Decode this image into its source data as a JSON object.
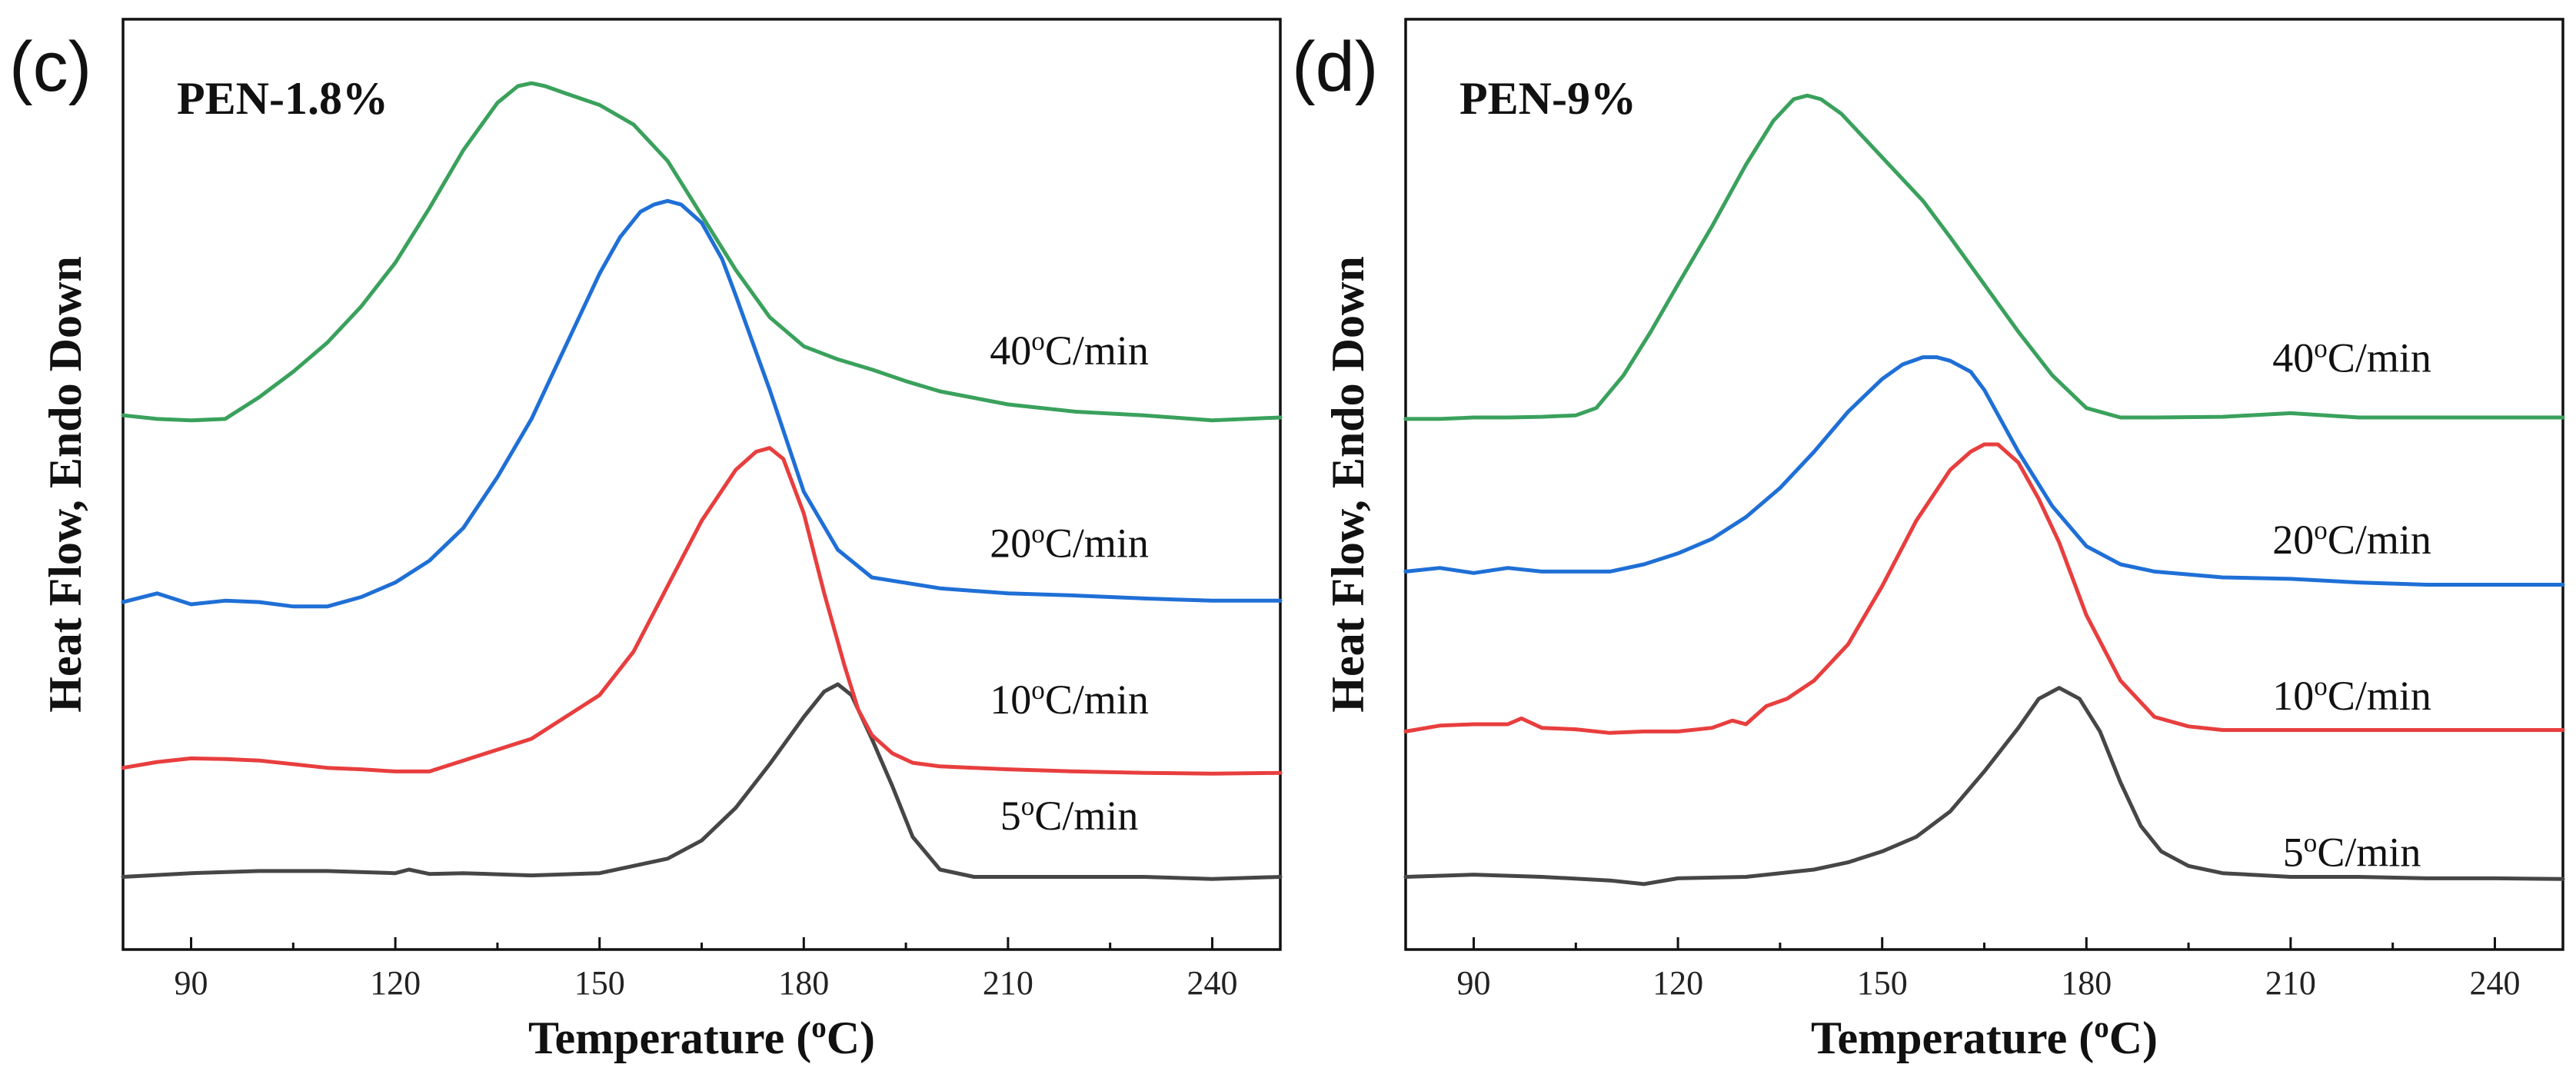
{
  "chart_data": [
    {
      "type": "line",
      "panel": "(c)",
      "title": "PEN-1.8%",
      "xlabel": "Temperature (°C)",
      "xlabel_parts": {
        "pre": "Temperature (",
        "sup": "o",
        "post": "C)"
      },
      "ylabel": "Heat Flow, Endo Down",
      "xlim": [
        80,
        250
      ],
      "ylim": [
        -1.0,
        11.8
      ],
      "xticks": [
        90,
        120,
        150,
        180,
        210,
        240
      ],
      "yticks": [],
      "grid": false,
      "legend": "inline labels at right",
      "series": [
        {
          "name": "5°C/min",
          "label_parts": {
            "pre": "5",
            "sup": "o",
            "post": "C/min"
          },
          "label_at": [
            219,
            0.65
          ],
          "color": "#464646",
          "x": [
            80,
            90,
            100,
            110,
            120,
            122,
            125,
            130,
            140,
            150,
            160,
            165,
            170,
            175,
            180,
            183,
            185,
            187,
            190,
            193,
            196,
            200,
            205,
            210,
            220,
            230,
            240,
            250
          ],
          "y": [
            0.0,
            0.05,
            0.08,
            0.08,
            0.05,
            0.1,
            0.04,
            0.05,
            0.02,
            0.05,
            0.25,
            0.5,
            0.95,
            1.55,
            2.2,
            2.55,
            2.65,
            2.5,
            1.9,
            1.25,
            0.55,
            0.1,
            0.0,
            0.0,
            0.0,
            0.0,
            -0.03,
            0.0
          ]
        },
        {
          "name": "10°C/min",
          "label_parts": {
            "pre": "10",
            "sup": "o",
            "post": "C/min"
          },
          "label_at": [
            219,
            2.25
          ],
          "color": "#e83e3e",
          "x": [
            80,
            85,
            90,
            95,
            100,
            110,
            115,
            120,
            125,
            130,
            140,
            150,
            155,
            160,
            165,
            170,
            173,
            175,
            177,
            180,
            183,
            186,
            188,
            190,
            193,
            196,
            200,
            205,
            210,
            220,
            230,
            240,
            250
          ],
          "y": [
            1.5,
            1.58,
            1.63,
            1.62,
            1.6,
            1.5,
            1.48,
            1.45,
            1.45,
            1.6,
            1.9,
            2.5,
            3.1,
            4.0,
            4.9,
            5.6,
            5.85,
            5.9,
            5.75,
            5.0,
            3.9,
            2.9,
            2.3,
            1.95,
            1.7,
            1.57,
            1.52,
            1.5,
            1.48,
            1.45,
            1.43,
            1.42,
            1.43
          ]
        },
        {
          "name": "20°C/min",
          "label_parts": {
            "pre": "20",
            "sup": "o",
            "post": "C/min"
          },
          "label_at": [
            219,
            4.4
          ],
          "color": "#1f6fd6",
          "x": [
            80,
            85,
            90,
            95,
            100,
            105,
            110,
            115,
            120,
            125,
            130,
            135,
            140,
            145,
            150,
            153,
            156,
            158,
            160,
            162,
            165,
            168,
            170,
            175,
            180,
            185,
            190,
            200,
            210,
            220,
            230,
            240,
            250
          ],
          "y": [
            3.78,
            3.9,
            3.75,
            3.8,
            3.78,
            3.72,
            3.72,
            3.85,
            4.05,
            4.35,
            4.8,
            5.5,
            6.3,
            7.3,
            8.3,
            8.8,
            9.15,
            9.25,
            9.3,
            9.25,
            9.0,
            8.5,
            8.0,
            6.7,
            5.3,
            4.5,
            4.12,
            3.97,
            3.9,
            3.87,
            3.83,
            3.8,
            3.8
          ]
        },
        {
          "name": "40°C/min",
          "label_parts": {
            "pre": "40",
            "sup": "o",
            "post": "C/min"
          },
          "label_at": [
            219,
            7.05
          ],
          "color": "#3aa15c",
          "x": [
            80,
            85,
            90,
            95,
            100,
            105,
            110,
            115,
            120,
            125,
            130,
            135,
            138,
            140,
            142,
            145,
            150,
            155,
            160,
            165,
            170,
            175,
            180,
            185,
            190,
            195,
            200,
            210,
            220,
            230,
            240,
            250
          ],
          "y": [
            6.35,
            6.3,
            6.28,
            6.3,
            6.6,
            6.95,
            7.35,
            7.85,
            8.45,
            9.2,
            10.0,
            10.65,
            10.88,
            10.92,
            10.88,
            10.78,
            10.62,
            10.35,
            9.85,
            9.1,
            8.35,
            7.7,
            7.3,
            7.12,
            6.98,
            6.82,
            6.68,
            6.5,
            6.4,
            6.35,
            6.28,
            6.32
          ]
        }
      ]
    },
    {
      "type": "line",
      "panel": "(d)",
      "title": "PEN-9%",
      "xlabel": "Temperature (°C)",
      "xlabel_parts": {
        "pre": "Temperature (",
        "sup": "o",
        "post": "C)"
      },
      "ylabel": "Heat Flow, Endo Down",
      "xlim": [
        80,
        250
      ],
      "ylim": [
        -1.0,
        11.8
      ],
      "xticks": [
        90,
        120,
        150,
        180,
        210,
        240
      ],
      "yticks": [],
      "grid": false,
      "legend": "inline labels at right",
      "series": [
        {
          "name": "5°C/min",
          "label_parts": {
            "pre": "5",
            "sup": "o",
            "post": "C/min"
          },
          "label_at": [
            219,
            0.15
          ],
          "color": "#464646",
          "x": [
            80,
            90,
            100,
            110,
            115,
            120,
            130,
            140,
            145,
            150,
            155,
            160,
            165,
            170,
            173,
            176,
            179,
            182,
            185,
            188,
            191,
            195,
            200,
            210,
            220,
            230,
            240,
            250
          ],
          "y": [
            0.0,
            0.03,
            0.0,
            -0.05,
            -0.1,
            -0.02,
            0.0,
            0.1,
            0.2,
            0.35,
            0.55,
            0.9,
            1.45,
            2.05,
            2.45,
            2.6,
            2.45,
            2.0,
            1.3,
            0.7,
            0.35,
            0.15,
            0.05,
            0.0,
            0.0,
            -0.02,
            -0.02,
            -0.03
          ]
        },
        {
          "name": "10°C/min",
          "label_parts": {
            "pre": "10",
            "sup": "o",
            "post": "C/min"
          },
          "label_at": [
            219,
            2.3
          ],
          "color": "#e83e3e",
          "x": [
            80,
            85,
            90,
            95,
            97,
            100,
            105,
            110,
            115,
            120,
            125,
            128,
            130,
            133,
            136,
            140,
            145,
            150,
            155,
            160,
            163,
            165,
            167,
            170,
            173,
            176,
            180,
            185,
            190,
            195,
            200,
            210,
            220,
            230,
            240,
            250
          ],
          "y": [
            2.0,
            2.08,
            2.1,
            2.1,
            2.18,
            2.05,
            2.03,
            1.98,
            2.0,
            2.0,
            2.05,
            2.15,
            2.1,
            2.35,
            2.45,
            2.7,
            3.2,
            4.0,
            4.9,
            5.6,
            5.85,
            5.95,
            5.95,
            5.7,
            5.2,
            4.6,
            3.6,
            2.7,
            2.2,
            2.07,
            2.02,
            2.02,
            2.02,
            2.02,
            2.02,
            2.02
          ]
        },
        {
          "name": "20°C/min",
          "label_parts": {
            "pre": "20",
            "sup": "o",
            "post": "C/min"
          },
          "label_at": [
            219,
            4.45
          ],
          "color": "#1f6fd6",
          "x": [
            80,
            85,
            90,
            95,
            100,
            110,
            115,
            120,
            125,
            130,
            135,
            140,
            145,
            150,
            153,
            156,
            158,
            160,
            163,
            165,
            170,
            175,
            180,
            185,
            190,
            200,
            210,
            220,
            230,
            240,
            250
          ],
          "y": [
            4.2,
            4.25,
            4.18,
            4.25,
            4.2,
            4.2,
            4.3,
            4.45,
            4.65,
            4.95,
            5.35,
            5.85,
            6.4,
            6.85,
            7.05,
            7.15,
            7.15,
            7.1,
            6.95,
            6.7,
            5.85,
            5.1,
            4.55,
            4.3,
            4.2,
            4.12,
            4.1,
            4.05,
            4.02,
            4.02,
            4.02
          ]
        },
        {
          "name": "40°C/min",
          "label_parts": {
            "pre": "40",
            "sup": "o",
            "post": "C/min"
          },
          "label_at": [
            219,
            6.95
          ],
          "color": "#3aa15c",
          "x": [
            80,
            85,
            90,
            95,
            100,
            105,
            108,
            112,
            116,
            120,
            125,
            130,
            134,
            137,
            139,
            141,
            144,
            148,
            152,
            156,
            160,
            165,
            170,
            175,
            180,
            185,
            190,
            200,
            210,
            220,
            230,
            240,
            250
          ],
          "y": [
            6.3,
            6.3,
            6.32,
            6.32,
            6.33,
            6.35,
            6.45,
            6.9,
            7.5,
            8.15,
            8.95,
            9.8,
            10.4,
            10.7,
            10.75,
            10.7,
            10.5,
            10.1,
            9.7,
            9.3,
            8.8,
            8.15,
            7.5,
            6.9,
            6.45,
            6.32,
            6.32,
            6.33,
            6.38,
            6.32,
            6.32,
            6.32,
            6.32
          ]
        }
      ]
    }
  ]
}
